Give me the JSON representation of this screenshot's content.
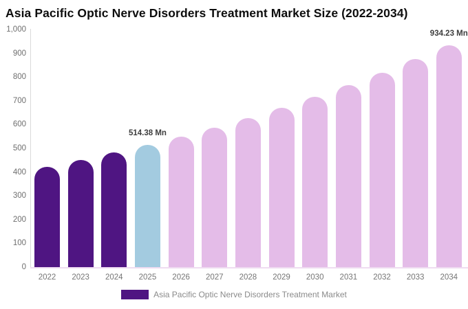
{
  "title": "Asia Pacific Optic Nerve Disorders Treatment Market Size (2022-2034)",
  "legend": {
    "label": "Asia Pacific Optic Nerve Disorders Treatment Market",
    "swatch_color": "#4F1582"
  },
  "chart_data": {
    "type": "bar",
    "title": "Asia Pacific Optic Nerve Disorders Treatment Market Size (2022-2034)",
    "categories": [
      "2022",
      "2023",
      "2024",
      "2025",
      "2026",
      "2027",
      "2028",
      "2029",
      "2030",
      "2031",
      "2032",
      "2033",
      "2034"
    ],
    "values": [
      421.5,
      450.4,
      481.3,
      514.38,
      549.7,
      587.4,
      627.7,
      670.7,
      716.7,
      765.9,
      818.4,
      874.6,
      934.23
    ],
    "unit": "Mn",
    "xlabel": "",
    "ylabel": "",
    "ylim": [
      0,
      1000
    ],
    "ytick_step": 100,
    "ytick_labels": [
      "0",
      "100",
      "200",
      "300",
      "400",
      "500",
      "600",
      "700",
      "800",
      "900",
      "1,000"
    ],
    "grid": false,
    "legend_position": "bottom",
    "palette": {
      "historical": "#4F1582",
      "highlight": "#A3CBE0",
      "forecast": "#E4BCE8"
    },
    "bar_colors": [
      "#4F1582",
      "#4F1582",
      "#4F1582",
      "#A3CBE0",
      "#E4BCE8",
      "#E4BCE8",
      "#E4BCE8",
      "#E4BCE8",
      "#E4BCE8",
      "#E4BCE8",
      "#E4BCE8",
      "#E4BCE8",
      "#E4BCE8"
    ],
    "annotations": [
      {
        "category": "2025",
        "text": "514.38 Mn"
      },
      {
        "category": "2034",
        "text": "934.23 Mn"
      }
    ]
  }
}
